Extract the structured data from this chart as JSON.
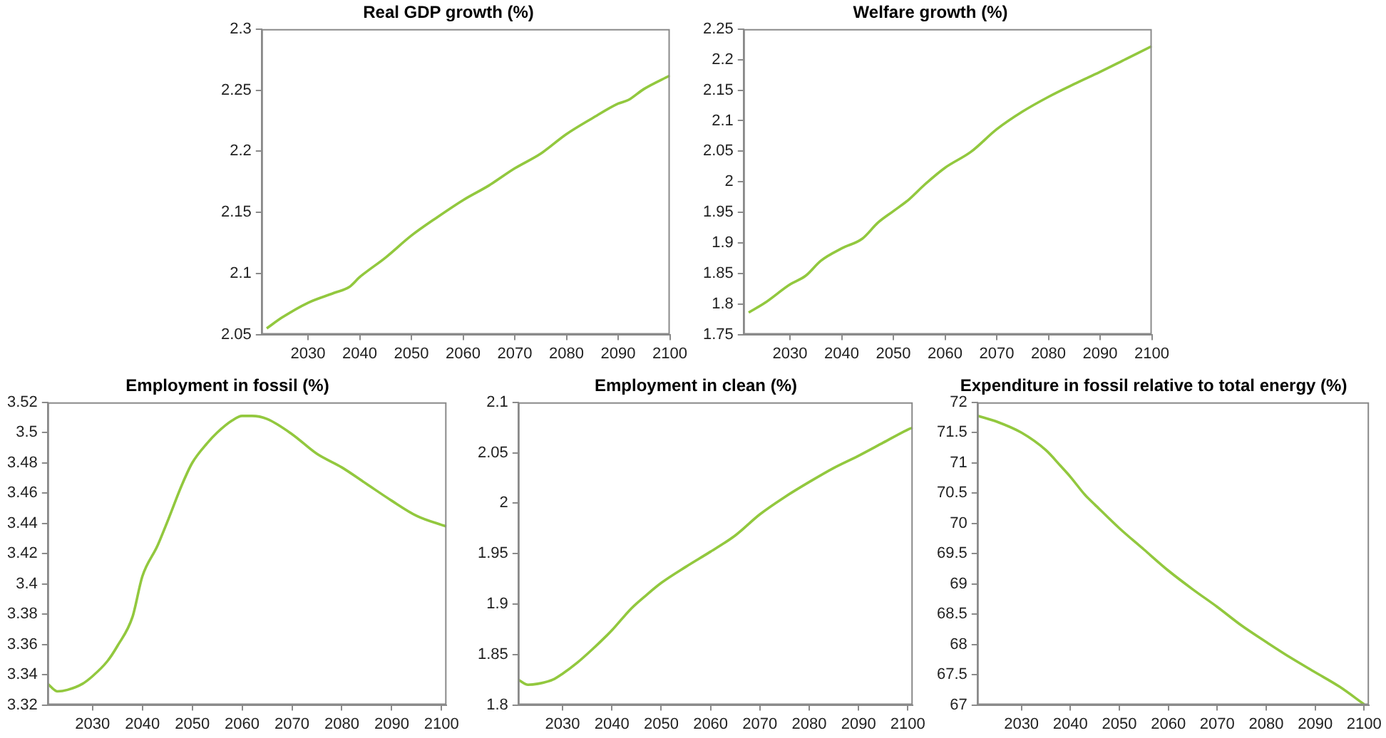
{
  "chart_data": [
    {
      "type": "line",
      "title": "Real GDP growth (%)",
      "xlim": [
        2021,
        2100
      ],
      "xticks": [
        2030,
        2040,
        2050,
        2060,
        2070,
        2080,
        2090,
        2100
      ],
      "ylim": [
        2.05,
        2.3
      ],
      "yticks": [
        2.05,
        2.1,
        2.15,
        2.2,
        2.25,
        2.3
      ],
      "legend": false,
      "marker": "none",
      "x": [
        2022,
        2025,
        2030,
        2035,
        2038,
        2040,
        2045,
        2050,
        2055,
        2060,
        2065,
        2070,
        2075,
        2080,
        2085,
        2090,
        2092,
        2095,
        2100
      ],
      "series": [
        {
          "color": "#92c83e",
          "values": [
            2.055,
            2.064,
            2.076,
            2.084,
            2.089,
            2.097,
            2.113,
            2.131,
            2.146,
            2.16,
            2.172,
            2.186,
            2.198,
            2.214,
            2.227,
            2.239,
            2.242,
            2.251,
            2.262
          ]
        }
      ]
    },
    {
      "type": "line",
      "title": "Welfare growth (%)",
      "xlim": [
        2021,
        2100
      ],
      "xticks": [
        2030,
        2040,
        2050,
        2060,
        2070,
        2080,
        2090,
        2100
      ],
      "ylim": [
        1.75,
        2.25
      ],
      "yticks": [
        1.75,
        1.8,
        1.85,
        1.9,
        1.95,
        2,
        2.05,
        2.1,
        2.15,
        2.2,
        2.25
      ],
      "legend": false,
      "marker": "none",
      "x": [
        2022,
        2025,
        2030,
        2033,
        2036,
        2040,
        2044,
        2047,
        2050,
        2053,
        2056,
        2060,
        2065,
        2070,
        2075,
        2080,
        2085,
        2090,
        2095,
        2100
      ],
      "series": [
        {
          "color": "#92c83e",
          "values": [
            1.786,
            1.801,
            1.832,
            1.846,
            1.871,
            1.891,
            1.907,
            1.933,
            1.952,
            1.971,
            1.995,
            2.023,
            2.049,
            2.086,
            2.115,
            2.139,
            2.16,
            2.18,
            2.201,
            2.222
          ]
        }
      ]
    },
    {
      "type": "line",
      "title": "Employment in fossil (%)",
      "xlim": [
        2021,
        2101
      ],
      "xticks": [
        2030,
        2040,
        2050,
        2060,
        2070,
        2080,
        2090,
        2100
      ],
      "ylim": [
        3.32,
        3.52
      ],
      "yticks": [
        3.32,
        3.34,
        3.36,
        3.38,
        3.4,
        3.42,
        3.44,
        3.46,
        3.48,
        3.5,
        3.52
      ],
      "legend": false,
      "marker": "none",
      "x": [
        2021,
        2023,
        2025,
        2028,
        2030,
        2033,
        2035,
        2038,
        2040,
        2043,
        2045,
        2048,
        2050,
        2053,
        2055,
        2058,
        2060,
        2062,
        2065,
        2070,
        2075,
        2080,
        2085,
        2090,
        2095,
        2100,
        2101
      ],
      "series": [
        {
          "color": "#92c83e",
          "values": [
            3.334,
            3.329,
            3.33,
            3.334,
            3.339,
            3.349,
            3.359,
            3.378,
            3.405,
            3.425,
            3.441,
            3.466,
            3.48,
            3.493,
            3.5,
            3.508,
            3.511,
            3.511,
            3.509,
            3.499,
            3.486,
            3.477,
            3.466,
            3.455,
            3.445,
            3.439,
            3.438
          ]
        }
      ]
    },
    {
      "type": "line",
      "title": "Employment in clean (%)",
      "xlim": [
        2021,
        2101
      ],
      "xticks": [
        2030,
        2040,
        2050,
        2060,
        2070,
        2080,
        2090,
        2100
      ],
      "ylim": [
        1.8,
        2.1
      ],
      "yticks": [
        1.8,
        1.85,
        1.9,
        1.95,
        2,
        2.05,
        2.1
      ],
      "legend": false,
      "marker": "none",
      "x": [
        2021,
        2023,
        2025,
        2028,
        2030,
        2033,
        2036,
        2039,
        2040,
        2044,
        2047,
        2050,
        2055,
        2060,
        2065,
        2070,
        2075,
        2080,
        2085,
        2090,
        2095,
        2100,
        2101
      ],
      "series": [
        {
          "color": "#92c83e",
          "values": [
            1.825,
            1.82,
            1.821,
            1.825,
            1.831,
            1.842,
            1.855,
            1.869,
            1.874,
            1.896,
            1.909,
            1.921,
            1.937,
            1.952,
            1.968,
            1.989,
            2.006,
            2.021,
            2.035,
            2.047,
            2.06,
            2.073,
            2.075
          ]
        }
      ]
    },
    {
      "type": "line",
      "title": "Expenditure in fossil relative to total energy (%)",
      "xlim": [
        2021,
        2101
      ],
      "xticks": [
        2030,
        2040,
        2050,
        2060,
        2070,
        2080,
        2090,
        2100
      ],
      "ylim": [
        67,
        72
      ],
      "yticks": [
        67,
        67.5,
        68,
        68.5,
        69,
        69.5,
        70,
        70.5,
        71,
        71.5,
        72
      ],
      "legend": false,
      "marker": "none",
      "x": [
        2021,
        2025,
        2030,
        2035,
        2038,
        2040,
        2043,
        2045,
        2050,
        2055,
        2060,
        2065,
        2070,
        2075,
        2080,
        2085,
        2090,
        2095,
        2100
      ],
      "series": [
        {
          "color": "#92c83e",
          "values": [
            71.78,
            71.68,
            71.5,
            71.21,
            70.95,
            70.77,
            70.47,
            70.31,
            69.92,
            69.57,
            69.22,
            68.91,
            68.62,
            68.31,
            68.04,
            67.78,
            67.54,
            67.3,
            67.01
          ]
        }
      ]
    }
  ]
}
